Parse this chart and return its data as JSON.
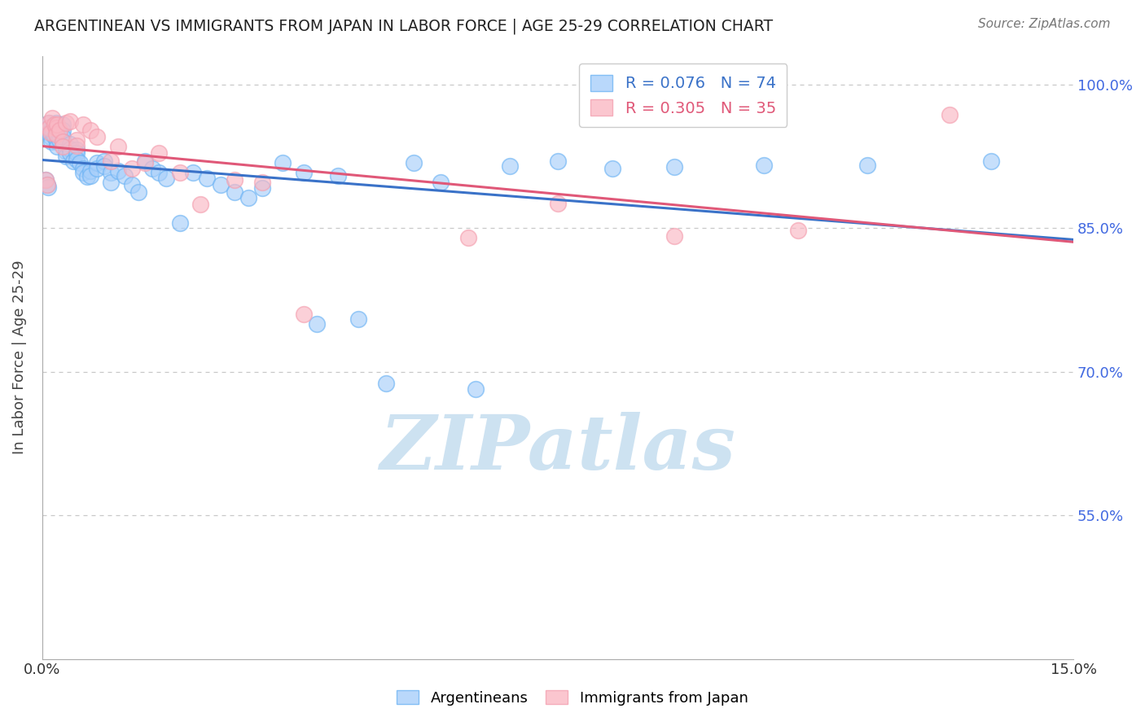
{
  "title": "ARGENTINEAN VS IMMIGRANTS FROM JAPAN IN LABOR FORCE | AGE 25-29 CORRELATION CHART",
  "source": "Source: ZipAtlas.com",
  "ylabel": "In Labor Force | Age 25-29",
  "xmin": 0.0,
  "xmax": 0.15,
  "ymin": 0.4,
  "ymax": 1.03,
  "blue_color": "#6EB4F4",
  "pink_color": "#F4A0B0",
  "blue_fill_color": "#A8CFFA",
  "pink_fill_color": "#FAB8C4",
  "blue_line_color": "#3A72C8",
  "pink_line_color": "#E05878",
  "legend_blue_R": "R = 0.076",
  "legend_blue_N": "N = 74",
  "legend_pink_R": "R = 0.305",
  "legend_pink_N": "N = 35",
  "ytick_vals": [
    0.55,
    0.7,
    0.85,
    1.0
  ],
  "ytick_labels": [
    "55.0%",
    "70.0%",
    "85.0%",
    "100.0%"
  ],
  "blue_x": [
    0.0005,
    0.0007,
    0.0008,
    0.001,
    0.001,
    0.001,
    0.0012,
    0.0013,
    0.0015,
    0.0015,
    0.0018,
    0.002,
    0.002,
    0.002,
    0.0022,
    0.0022,
    0.0025,
    0.0025,
    0.003,
    0.003,
    0.003,
    0.003,
    0.0035,
    0.0035,
    0.004,
    0.004,
    0.004,
    0.0045,
    0.005,
    0.005,
    0.005,
    0.0055,
    0.006,
    0.006,
    0.0065,
    0.007,
    0.007,
    0.008,
    0.008,
    0.009,
    0.009,
    0.01,
    0.01,
    0.011,
    0.012,
    0.013,
    0.014,
    0.015,
    0.016,
    0.017,
    0.018,
    0.02,
    0.022,
    0.024,
    0.026,
    0.028,
    0.03,
    0.032,
    0.035,
    0.038,
    0.04,
    0.043,
    0.046,
    0.05,
    0.054,
    0.058,
    0.063,
    0.068,
    0.075,
    0.083,
    0.092,
    0.105,
    0.12,
    0.138
  ],
  "blue_y": [
    0.9,
    0.895,
    0.893,
    0.96,
    0.955,
    0.95,
    0.945,
    0.94,
    0.955,
    0.95,
    0.945,
    0.96,
    0.955,
    0.95,
    0.94,
    0.935,
    0.948,
    0.942,
    0.958,
    0.952,
    0.945,
    0.94,
    0.93,
    0.925,
    0.938,
    0.933,
    0.928,
    0.92,
    0.932,
    0.928,
    0.922,
    0.918,
    0.912,
    0.908,
    0.904,
    0.91,
    0.905,
    0.918,
    0.912,
    0.92,
    0.915,
    0.908,
    0.898,
    0.91,
    0.905,
    0.895,
    0.888,
    0.92,
    0.912,
    0.908,
    0.902,
    0.855,
    0.908,
    0.902,
    0.895,
    0.888,
    0.882,
    0.892,
    0.918,
    0.908,
    0.75,
    0.905,
    0.755,
    0.688,
    0.918,
    0.898,
    0.682,
    0.915,
    0.92,
    0.912,
    0.914,
    0.916,
    0.916,
    0.92
  ],
  "pink_x": [
    0.0005,
    0.0007,
    0.001,
    0.001,
    0.0012,
    0.0015,
    0.0018,
    0.002,
    0.002,
    0.0022,
    0.0025,
    0.003,
    0.003,
    0.0035,
    0.004,
    0.005,
    0.005,
    0.006,
    0.007,
    0.008,
    0.01,
    0.011,
    0.013,
    0.015,
    0.017,
    0.02,
    0.023,
    0.028,
    0.032,
    0.038,
    0.062,
    0.075,
    0.092,
    0.11,
    0.132
  ],
  "pink_y": [
    0.9,
    0.895,
    0.96,
    0.955,
    0.95,
    0.965,
    0.958,
    0.955,
    0.948,
    0.958,
    0.952,
    0.94,
    0.935,
    0.96,
    0.962,
    0.942,
    0.936,
    0.958,
    0.952,
    0.945,
    0.92,
    0.935,
    0.912,
    0.918,
    0.928,
    0.908,
    0.875,
    0.9,
    0.898,
    0.76,
    0.84,
    0.876,
    0.842,
    0.848,
    0.968
  ],
  "watermark_text": "ZIPatlas",
  "watermark_color": "#c8dff0",
  "axis_label_color": "#4169E1",
  "grid_color": "#c8c8c8",
  "title_color": "#222222",
  "source_color": "#777777",
  "ylabel_color": "#444444"
}
